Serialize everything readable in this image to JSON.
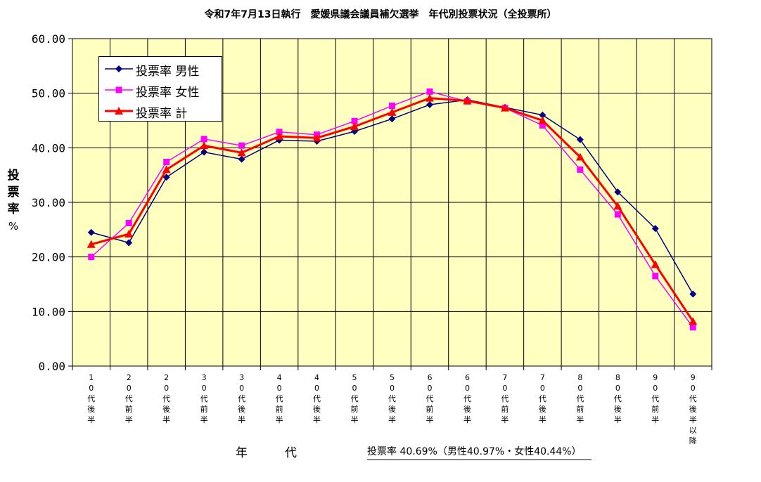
{
  "chart_data": {
    "type": "line",
    "title": "令和7年7月13日執行　愛媛県議会議員補欠選挙　年代別投票状況（全投票所）",
    "xlabel": "年　代",
    "ylabel": "投票率 %",
    "ylabel_chars": [
      "投",
      "票",
      "率",
      "%"
    ],
    "ylim": [
      0,
      60
    ],
    "yticks": [
      "0.00",
      "10.00",
      "20.00",
      "30.00",
      "40.00",
      "50.00",
      "60.00"
    ],
    "grid": true,
    "legend_position": "top-left",
    "plot_background": "#ffffc0",
    "categories": [
      [
        "1",
        "0",
        "代",
        "後",
        "半"
      ],
      [
        "2",
        "0",
        "代",
        "前",
        "半"
      ],
      [
        "2",
        "0",
        "代",
        "後",
        "半"
      ],
      [
        "3",
        "0",
        "代",
        "前",
        "半"
      ],
      [
        "3",
        "0",
        "代",
        "後",
        "半"
      ],
      [
        "4",
        "0",
        "代",
        "前",
        "半"
      ],
      [
        "4",
        "0",
        "代",
        "後",
        "半"
      ],
      [
        "5",
        "0",
        "代",
        "前",
        "半"
      ],
      [
        "5",
        "0",
        "代",
        "後",
        "半"
      ],
      [
        "6",
        "0",
        "代",
        "前",
        "半"
      ],
      [
        "6",
        "0",
        "代",
        "後",
        "半"
      ],
      [
        "7",
        "0",
        "代",
        "前",
        "半"
      ],
      [
        "7",
        "0",
        "代",
        "後",
        "半"
      ],
      [
        "8",
        "0",
        "代",
        "前",
        "半"
      ],
      [
        "8",
        "0",
        "代",
        "後",
        "半"
      ],
      [
        "9",
        "0",
        "代",
        "前",
        "半"
      ],
      [
        "9",
        "0",
        "代",
        "後",
        "半",
        "以",
        "降"
      ]
    ],
    "series": [
      {
        "name": "投票率 男性",
        "color": "#000080",
        "marker": "diamond",
        "values": [
          24.5,
          22.6,
          34.6,
          39.2,
          37.9,
          41.4,
          41.2,
          43.0,
          45.3,
          47.9,
          48.8,
          47.4,
          46.0,
          41.5,
          31.9,
          25.2,
          13.2
        ]
      },
      {
        "name": "投票率 女性",
        "color": "#ff00ff",
        "marker": "square",
        "values": [
          20.0,
          26.2,
          37.4,
          41.6,
          40.4,
          42.9,
          42.4,
          44.9,
          47.7,
          50.3,
          48.5,
          47.3,
          44.1,
          36.0,
          27.8,
          16.5,
          7.1
        ]
      },
      {
        "name": "投票率 計",
        "color": "#ff0000",
        "marker": "triangle",
        "values": [
          22.3,
          24.2,
          36.0,
          40.4,
          39.1,
          42.1,
          41.8,
          43.9,
          46.5,
          49.1,
          48.6,
          47.3,
          45.0,
          38.3,
          29.3,
          18.6,
          8.2
        ]
      }
    ],
    "summary": "投票率 40.69%（男性40.97%・女性40.44%）"
  }
}
